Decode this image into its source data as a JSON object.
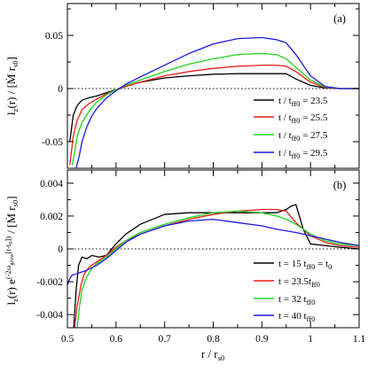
{
  "chart_data": [
    {
      "type": "line",
      "panel_label": "(a)",
      "ylabel": "l_z(r) / [Ṁ r_s0]",
      "xlim": [
        0.5,
        1.1
      ],
      "ylim": [
        -0.075,
        0.08
      ],
      "yticks": [
        -0.05,
        0,
        0.05
      ],
      "ytick_labels": [
        "-0.05",
        "0",
        "0.05"
      ],
      "zero_line": true,
      "legend_position": "bottom-right",
      "series": [
        {
          "name": "t / t_ff0 = 23.5",
          "color": "#000000",
          "x": [
            0.505,
            0.512,
            0.52,
            0.53,
            0.545,
            0.56,
            0.58,
            0.6,
            0.62,
            0.65,
            0.7,
            0.75,
            0.8,
            0.85,
            0.9,
            0.93,
            0.95,
            0.97,
            1.0,
            1.03,
            1.06,
            1.1
          ],
          "y": [
            -0.05,
            -0.025,
            -0.016,
            -0.011,
            -0.0085,
            -0.007,
            -0.004,
            -0.001,
            0.002,
            0.006,
            0.01,
            0.012,
            0.0135,
            0.014,
            0.014,
            0.014,
            0.014,
            0.009,
            0.003,
            0.0005,
            0,
            0
          ]
        },
        {
          "name": "t / t_ff0 = 25.5",
          "color": "#e8201a",
          "x": [
            0.505,
            0.512,
            0.52,
            0.53,
            0.545,
            0.56,
            0.58,
            0.6,
            0.62,
            0.65,
            0.7,
            0.75,
            0.8,
            0.85,
            0.9,
            0.93,
            0.95,
            0.97,
            1.0,
            1.03,
            1.06,
            1.1
          ],
          "y": [
            -0.072,
            -0.045,
            -0.03,
            -0.02,
            -0.014,
            -0.01,
            -0.005,
            -0.0015,
            0.002,
            0.006,
            0.012,
            0.016,
            0.019,
            0.021,
            0.022,
            0.022,
            0.021,
            0.016,
            0.006,
            0.001,
            0,
            0
          ]
        },
        {
          "name": "t / t_ff0 = 27.5",
          "color": "#22d41e",
          "x": [
            0.51,
            0.515,
            0.52,
            0.53,
            0.545,
            0.56,
            0.58,
            0.6,
            0.62,
            0.65,
            0.7,
            0.75,
            0.8,
            0.85,
            0.9,
            0.93,
            0.95,
            0.97,
            1.0,
            1.03,
            1.06,
            1.1
          ],
          "y": [
            -0.072,
            -0.06,
            -0.045,
            -0.032,
            -0.021,
            -0.013,
            -0.006,
            -0.001,
            0.003,
            0.008,
            0.016,
            0.023,
            0.028,
            0.032,
            0.033,
            0.032,
            0.028,
            0.02,
            0.008,
            0.0015,
            0,
            0
          ]
        },
        {
          "name": "t / t_ff0 = 29.5",
          "color": "#1a1ae0",
          "x": [
            0.518,
            0.525,
            0.53,
            0.54,
            0.55,
            0.56,
            0.58,
            0.6,
            0.62,
            0.65,
            0.7,
            0.75,
            0.8,
            0.85,
            0.9,
            0.93,
            0.95,
            0.97,
            1.0,
            1.03,
            1.06,
            1.1
          ],
          "y": [
            -0.075,
            -0.062,
            -0.05,
            -0.036,
            -0.026,
            -0.019,
            -0.009,
            -0.002,
            0.004,
            0.011,
            0.022,
            0.033,
            0.042,
            0.047,
            0.048,
            0.046,
            0.043,
            0.032,
            0.012,
            0.002,
            0,
            0
          ]
        }
      ]
    },
    {
      "type": "line",
      "panel_label": "(b)",
      "ylabel": "l_z(r) e^(-2ω_grow[t-t_0]) / [Ṁ r_s0]",
      "xlabel": "r / r_s0",
      "xlim": [
        0.5,
        1.1
      ],
      "ylim": [
        -0.0048,
        0.0048
      ],
      "xticks": [
        0.5,
        0.6,
        0.7,
        0.8,
        0.9,
        1.0,
        1.1
      ],
      "xtick_labels": [
        "0.5",
        "0.6",
        "0.7",
        "0.8",
        "0.9",
        "1",
        "1.1"
      ],
      "yticks": [
        -0.004,
        -0.002,
        0,
        0.002,
        0.004
      ],
      "ytick_labels": [
        "-0.004",
        "-0.002",
        "0",
        "0.002",
        "0.004"
      ],
      "zero_line": true,
      "legend_position": "bottom-right",
      "series": [
        {
          "name": "t = 15  t_ff0 = t_0",
          "color": "#000000",
          "x": [
            0.513,
            0.518,
            0.523,
            0.53,
            0.54,
            0.55,
            0.565,
            0.58,
            0.6,
            0.62,
            0.65,
            0.7,
            0.75,
            0.8,
            0.85,
            0.9,
            0.93,
            0.95,
            0.96,
            0.97,
            0.985,
            1.0,
            1.03,
            1.06,
            1.1
          ],
          "y": [
            -0.0048,
            -0.0025,
            -0.001,
            -0.0005,
            -0.0006,
            -0.0004,
            -0.0005,
            -0.0004,
            0.0003,
            0.0009,
            0.0015,
            0.0021,
            0.0022,
            0.0022,
            0.0022,
            0.0022,
            0.0022,
            0.0024,
            0.0026,
            0.0027,
            0.0012,
            0.0003,
            0.0002,
            0.0001,
            0
          ]
        },
        {
          "name": "t = 23.5t_ff0",
          "color": "#e8201a",
          "x": [
            0.515,
            0.52,
            0.528,
            0.535,
            0.545,
            0.56,
            0.58,
            0.6,
            0.62,
            0.65,
            0.7,
            0.75,
            0.8,
            0.85,
            0.9,
            0.93,
            0.95,
            0.97,
            1.0,
            1.03,
            1.06,
            1.1
          ],
          "y": [
            -0.0048,
            -0.0035,
            -0.0022,
            -0.0015,
            -0.0011,
            -0.0008,
            -0.0004,
            0.0001,
            0.0005,
            0.0009,
            0.0014,
            0.0018,
            0.0021,
            0.0023,
            0.0024,
            0.0024,
            0.0023,
            0.0016,
            0.0008,
            0.0004,
            0.0002,
            0.0001
          ]
        },
        {
          "name": "t = 32   t_ff0",
          "color": "#22d41e",
          "x": [
            0.52,
            0.525,
            0.53,
            0.54,
            0.55,
            0.56,
            0.58,
            0.6,
            0.62,
            0.65,
            0.7,
            0.75,
            0.8,
            0.85,
            0.9,
            0.93,
            0.95,
            0.97,
            1.0,
            1.03,
            1.06,
            1.1
          ],
          "y": [
            -0.0048,
            -0.0035,
            -0.0025,
            -0.0017,
            -0.0012,
            -0.0009,
            -0.0005,
            0.0,
            0.0005,
            0.001,
            0.0015,
            0.0019,
            0.0022,
            0.0023,
            0.0022,
            0.002,
            0.0018,
            0.0015,
            0.0009,
            0.0005,
            0.0003,
            0.0002
          ]
        },
        {
          "name": "t = 40   t_ff0",
          "color": "#1a1ae0",
          "x": [
            0.5,
            0.505,
            0.51,
            0.52,
            0.53,
            0.54,
            0.56,
            0.58,
            0.6,
            0.62,
            0.65,
            0.7,
            0.75,
            0.8,
            0.85,
            0.9,
            0.93,
            0.95,
            0.97,
            1.0,
            1.03,
            1.06,
            1.1
          ],
          "y": [
            -0.0022,
            -0.0018,
            -0.0016,
            -0.0015,
            -0.0014,
            -0.0013,
            -0.001,
            -0.0006,
            -0.0001,
            0.0004,
            0.0009,
            0.0014,
            0.0017,
            0.0018,
            0.0016,
            0.0014,
            0.0012,
            0.0011,
            0.001,
            0.0008,
            0.0006,
            0.0004,
            0.0002
          ]
        }
      ]
    }
  ]
}
